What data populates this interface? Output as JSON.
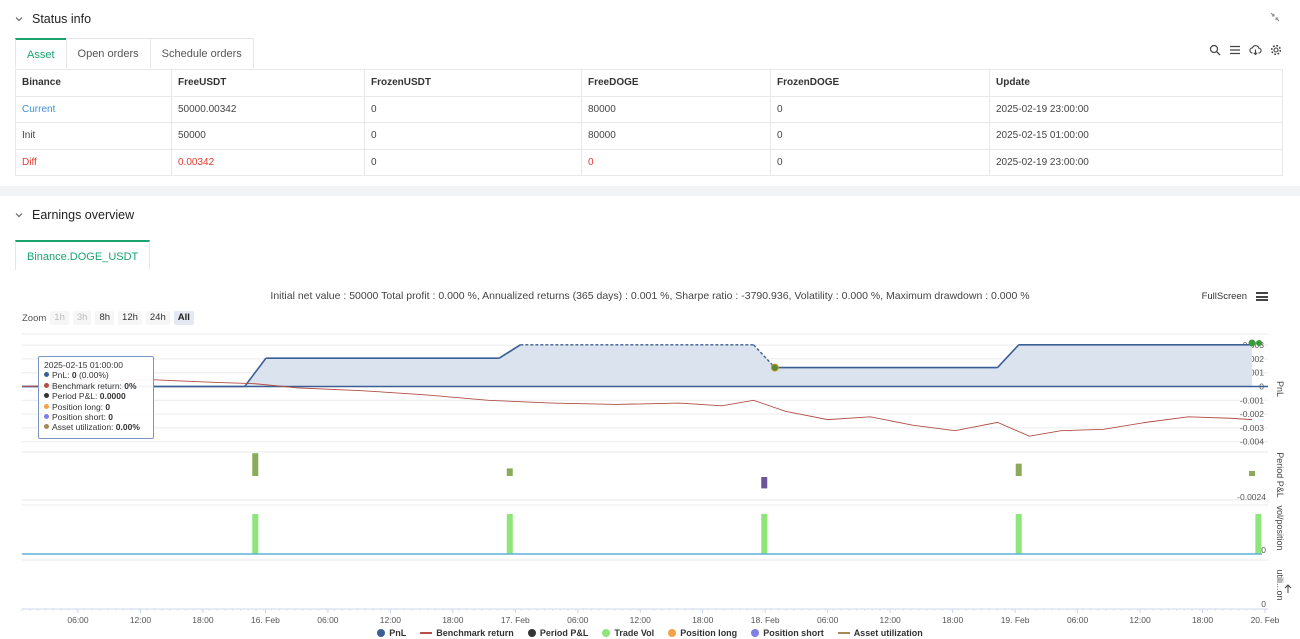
{
  "status": {
    "title": "Status info",
    "tabs": [
      "Asset",
      "Open orders",
      "Schedule orders"
    ],
    "table": {
      "headers": [
        "Binance",
        "FreeUSDT",
        "FrozenUSDT",
        "FreeDOGE",
        "FrozenDOGE",
        "Update"
      ],
      "rows": [
        [
          "Current",
          "50000.00342",
          "0",
          "80000",
          "0",
          "2025-02-19 23:00:00"
        ],
        [
          "Init",
          "50000",
          "0",
          "80000",
          "0",
          "2025-02-15 01:00:00"
        ],
        [
          "Diff",
          "0.00342",
          "0",
          "0",
          "0",
          "2025-02-19 23:00:00"
        ]
      ]
    },
    "colors": {
      "current": "#3d8fd8",
      "diff": "#e03b2e"
    }
  },
  "earnings": {
    "title": "Earnings overview",
    "tab": "Binance.DOGE_USDT",
    "summary": "Initial net value : 50000 Total profit : 0.000 %, Annualized returns (365 days) : 0.001 %, Sharpe ratio : -3790.936, Volatility : 0.000 %, Maximum drawdown : 0.000 %",
    "fullscreen_label": "FullScreen",
    "zoom": {
      "label": "Zoom",
      "buttons": [
        "1h",
        "3h",
        "8h",
        "12h",
        "24h",
        "All"
      ],
      "selected": "All",
      "disabled": [
        "1h",
        "3h"
      ]
    },
    "tooltip": {
      "time": "2025-02-15 01:00:00",
      "pnl_label": "PnL: ",
      "pnl_value": "0",
      "pnl_pct": " (0.00%)",
      "bench_label": "Benchmark return: ",
      "bench_value": "0%",
      "period_label": "Period P&L: ",
      "period_value": "0.0000",
      "long_label": "Position long: ",
      "long_value": "0",
      "short_label": "Position short: ",
      "short_value": "0",
      "util_label": "Asset utilization: ",
      "util_value": "0.00%"
    },
    "legend": [
      {
        "name": "PnL",
        "shape": "dot",
        "color": "#3b5f95"
      },
      {
        "name": "Benchmark return",
        "shape": "line",
        "color": "#b24f47"
      },
      {
        "name": "Period P&L",
        "shape": "dot",
        "color": "#333333"
      },
      {
        "name": "Trade Vol",
        "shape": "dot",
        "color": "#8ee57a"
      },
      {
        "name": "Position long",
        "shape": "dot",
        "color": "#f4a24a"
      },
      {
        "name": "Position short",
        "shape": "dot",
        "color": "#8080e6"
      },
      {
        "name": "Asset utilization",
        "shape": "line",
        "color": "#a38a55"
      }
    ]
  },
  "chart_data": {
    "type": "line",
    "x_ticks": [
      "06:00",
      "12:00",
      "18:00",
      "16. Feb",
      "06:00",
      "12:00",
      "18:00",
      "17. Feb",
      "06:00",
      "12:00",
      "18:00",
      "18. Feb",
      "06:00",
      "12:00",
      "18:00",
      "19. Feb",
      "06:00",
      "12:00",
      "18:00",
      "20. Feb"
    ],
    "x_range_hours": [
      0,
      118
    ],
    "pnl_axis": {
      "label": "PnL",
      "ticks": [
        "0.003",
        "0.002",
        "0.001",
        "0",
        "-0.001",
        "-0.002",
        "-0.003",
        "-0.004"
      ],
      "range": [
        -0.0045,
        0.0035
      ]
    },
    "period_axis": {
      "label": "Period P&L",
      "ticks": [
        "-0.0024"
      ]
    },
    "vol_axis": {
      "label": "vol/position",
      "ticks": [
        "0"
      ]
    },
    "util_axis": {
      "label": "utili...on",
      "ticks": [
        "0"
      ]
    },
    "pnl": [
      [
        0,
        0
      ],
      [
        10.5,
        0
      ],
      [
        11.5,
        0.00205
      ],
      [
        22.5,
        0.00205
      ],
      [
        23.5,
        0.00302
      ],
      [
        34.5,
        0.00302
      ],
      [
        35.5,
        0.00137
      ],
      [
        46,
        0.00137
      ],
      [
        47,
        0.00302
      ],
      [
        58,
        0.00302
      ]
    ],
    "pnl_dashed_segments": [
      [
        23.5,
        34.5
      ],
      [
        34.5,
        35.5
      ]
    ],
    "pnl_markers": [
      [
        35.5,
        0.00137
      ],
      [
        58,
        0.00342
      ]
    ],
    "benchmark": [
      [
        0,
        0
      ],
      [
        2,
        0.0001
      ],
      [
        4,
        0.0004
      ],
      [
        6,
        0.0005
      ],
      [
        9,
        0.0003
      ],
      [
        11,
        0.0002
      ],
      [
        13,
        -0.0001
      ],
      [
        16,
        -0.0003
      ],
      [
        19,
        -0.0006
      ],
      [
        22,
        -0.001
      ],
      [
        25,
        -0.0012
      ],
      [
        28,
        -0.0013
      ],
      [
        31,
        -0.0012
      ],
      [
        33,
        -0.0014
      ],
      [
        34.5,
        -0.001
      ],
      [
        36,
        -0.0018
      ],
      [
        38,
        -0.0024
      ],
      [
        40,
        -0.0022
      ],
      [
        42,
        -0.0028
      ],
      [
        44,
        -0.0032
      ],
      [
        46,
        -0.0026
      ],
      [
        47.5,
        -0.0036
      ],
      [
        49,
        -0.0032
      ],
      [
        51,
        -0.0031
      ],
      [
        53,
        -0.0026
      ],
      [
        55,
        -0.0022
      ],
      [
        57,
        -0.0023
      ],
      [
        58,
        -0.0024
      ]
    ],
    "period_pnl": [
      [
        11,
        0.0024,
        "#8bab5a"
      ],
      [
        23,
        0.0008,
        "#8bab5a"
      ],
      [
        35,
        -0.0012,
        "#6a5796"
      ],
      [
        47,
        0.0013,
        "#8bab5a"
      ],
      [
        58,
        0.0004,
        "#8bab5a"
      ]
    ],
    "trade_vol": [
      [
        11,
        1
      ],
      [
        23,
        1
      ],
      [
        35,
        1
      ],
      [
        47,
        1
      ],
      [
        58.3,
        1
      ]
    ]
  }
}
